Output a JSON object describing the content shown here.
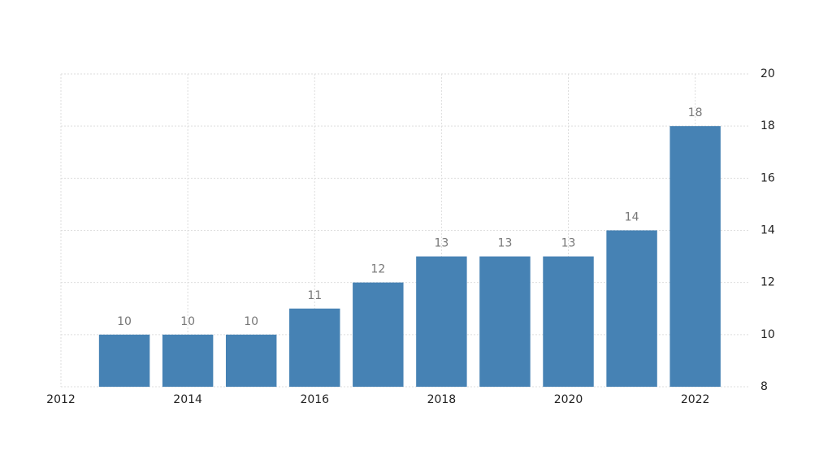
{
  "chart_data": {
    "type": "bar",
    "x": [
      2013,
      2014,
      2015,
      2016,
      2017,
      2018,
      2019,
      2020,
      2021,
      2022
    ],
    "values": [
      10,
      10,
      10,
      11,
      12,
      13,
      13,
      13,
      14,
      18
    ],
    "color": "#4682b4",
    "xlim": [
      2012,
      2022.85
    ],
    "xticks": [
      2012,
      2014,
      2016,
      2018,
      2020,
      2022
    ],
    "ylim": [
      8,
      20
    ],
    "yticks": [
      8,
      10,
      12,
      14,
      16,
      18,
      20
    ],
    "grid": true
  }
}
